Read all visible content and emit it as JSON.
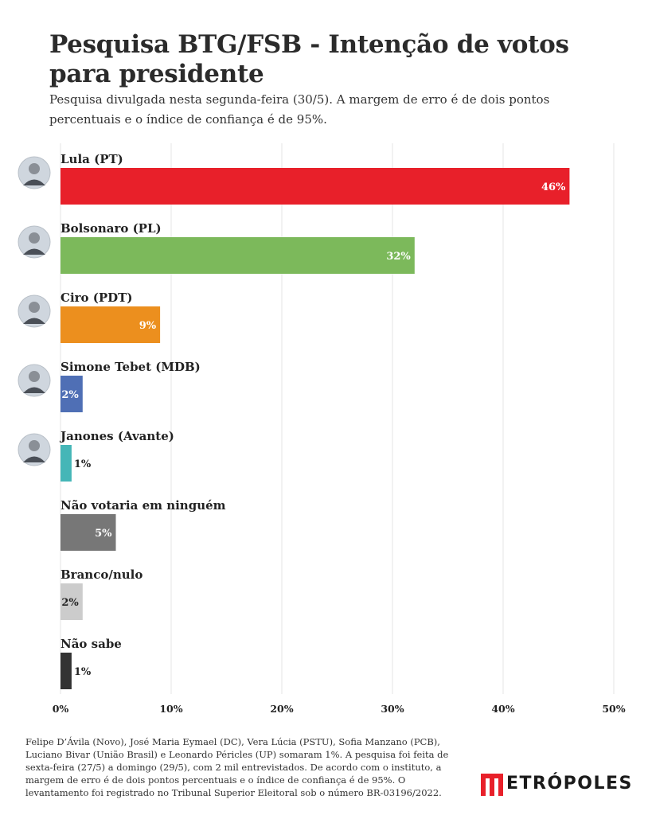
{
  "title": "Pesquisa BTG/FSB - Intenção de votos para presidente",
  "subtitle": "Pesquisa divulgada nesta segunda-feira (30/5). A margem de erro é de dois pontos percentuais e o índice de confiança é de 95%.",
  "footnote": "Felipe D’Ávila (Novo), José Maria Eymael (DC), Vera Lúcia (PSTU), Sofia Manzano (PCB), Luciano Bivar (União Brasil) e Leonardo Péricles (UP) somaram 1%. A pesquisa foi feita de sexta-feira (27/5) a domingo (29/5), com 2 mil entrevistados. De acordo com o instituto, a margem de erro é de dois pontos percentuais e o índice de confiança é de 95%. O levantamento foi registrado no Tribunal Superior Eleitoral sob o número BR-03196/2022.",
  "logo_text": "ETRÓPOLES",
  "chart_data": {
    "type": "bar",
    "orientation": "horizontal",
    "categories": [
      "Lula (PT)",
      "Bolsonaro (PL)",
      "Ciro (PDT)",
      "Simone Tebet (MDB)",
      "Janones (Avante)",
      "Não votaria em ninguém",
      "Branco/nulo",
      "Não sabe"
    ],
    "values": [
      46,
      32,
      9,
      2,
      1,
      5,
      2,
      1
    ],
    "value_labels": [
      "46%",
      "32%",
      "9%",
      "2%",
      "1%",
      "5%",
      "2%",
      "1%"
    ],
    "colors": [
      "#e8202a",
      "#7cb95b",
      "#ec8f1e",
      "#4f6fb5",
      "#45b6b7",
      "#777777",
      "#cccccc",
      "#333333"
    ],
    "label_colors": [
      "#ffffff",
      "#ffffff",
      "#ffffff",
      "#ffffff",
      "#222222",
      "#ffffff",
      "#222222",
      "#222222"
    ],
    "has_photo": [
      true,
      true,
      true,
      true,
      true,
      false,
      false,
      false
    ],
    "xlim": [
      0,
      50
    ],
    "xticks": [
      0,
      10,
      20,
      30,
      40,
      50
    ],
    "xtick_labels": [
      "0%",
      "10%",
      "20%",
      "30%",
      "40%",
      "50%"
    ],
    "grid": true,
    "legend": "none"
  }
}
